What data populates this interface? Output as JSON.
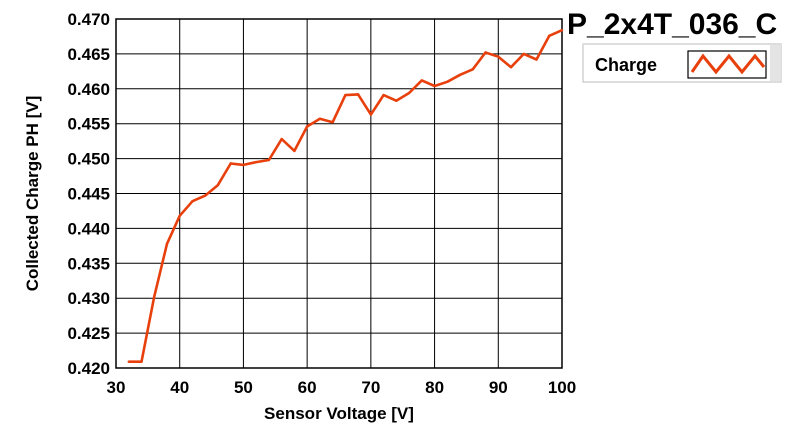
{
  "chart_data": {
    "type": "line",
    "title": "P_2x4T_036_C",
    "xlabel": "Sensor Voltage [V]",
    "ylabel": "Collected Charge PH [V]",
    "xlim": [
      30,
      100
    ],
    "ylim": [
      0.42,
      0.47
    ],
    "x_ticks": [
      "30",
      "40",
      "50",
      "60",
      "70",
      "80",
      "90",
      "100"
    ],
    "y_ticks": [
      "0.420",
      "0.425",
      "0.430",
      "0.435",
      "0.440",
      "0.445",
      "0.450",
      "0.455",
      "0.460",
      "0.465",
      "0.470"
    ],
    "grid": true,
    "legend": "top-right",
    "series": [
      {
        "name": "Charge",
        "color": "#e8400c",
        "x": [
          32,
          34,
          36,
          38,
          40,
          42,
          44,
          46,
          48,
          50,
          52,
          54,
          56,
          58,
          60,
          62,
          64,
          66,
          68,
          70,
          72,
          74,
          76,
          78,
          80,
          82,
          84,
          86,
          88,
          90,
          92,
          94,
          96,
          98,
          100
        ],
        "y": [
          0.4209,
          0.4209,
          0.4302,
          0.4378,
          0.4418,
          0.4439,
          0.4447,
          0.4462,
          0.4493,
          0.4491,
          0.4495,
          0.4498,
          0.4528,
          0.4511,
          0.4546,
          0.4557,
          0.4552,
          0.4591,
          0.4592,
          0.4563,
          0.4591,
          0.4583,
          0.4594,
          0.4612,
          0.4604,
          0.461,
          0.462,
          0.4628,
          0.4652,
          0.4646,
          0.4631,
          0.465,
          0.4642,
          0.4676,
          0.4684
        ]
      }
    ]
  }
}
